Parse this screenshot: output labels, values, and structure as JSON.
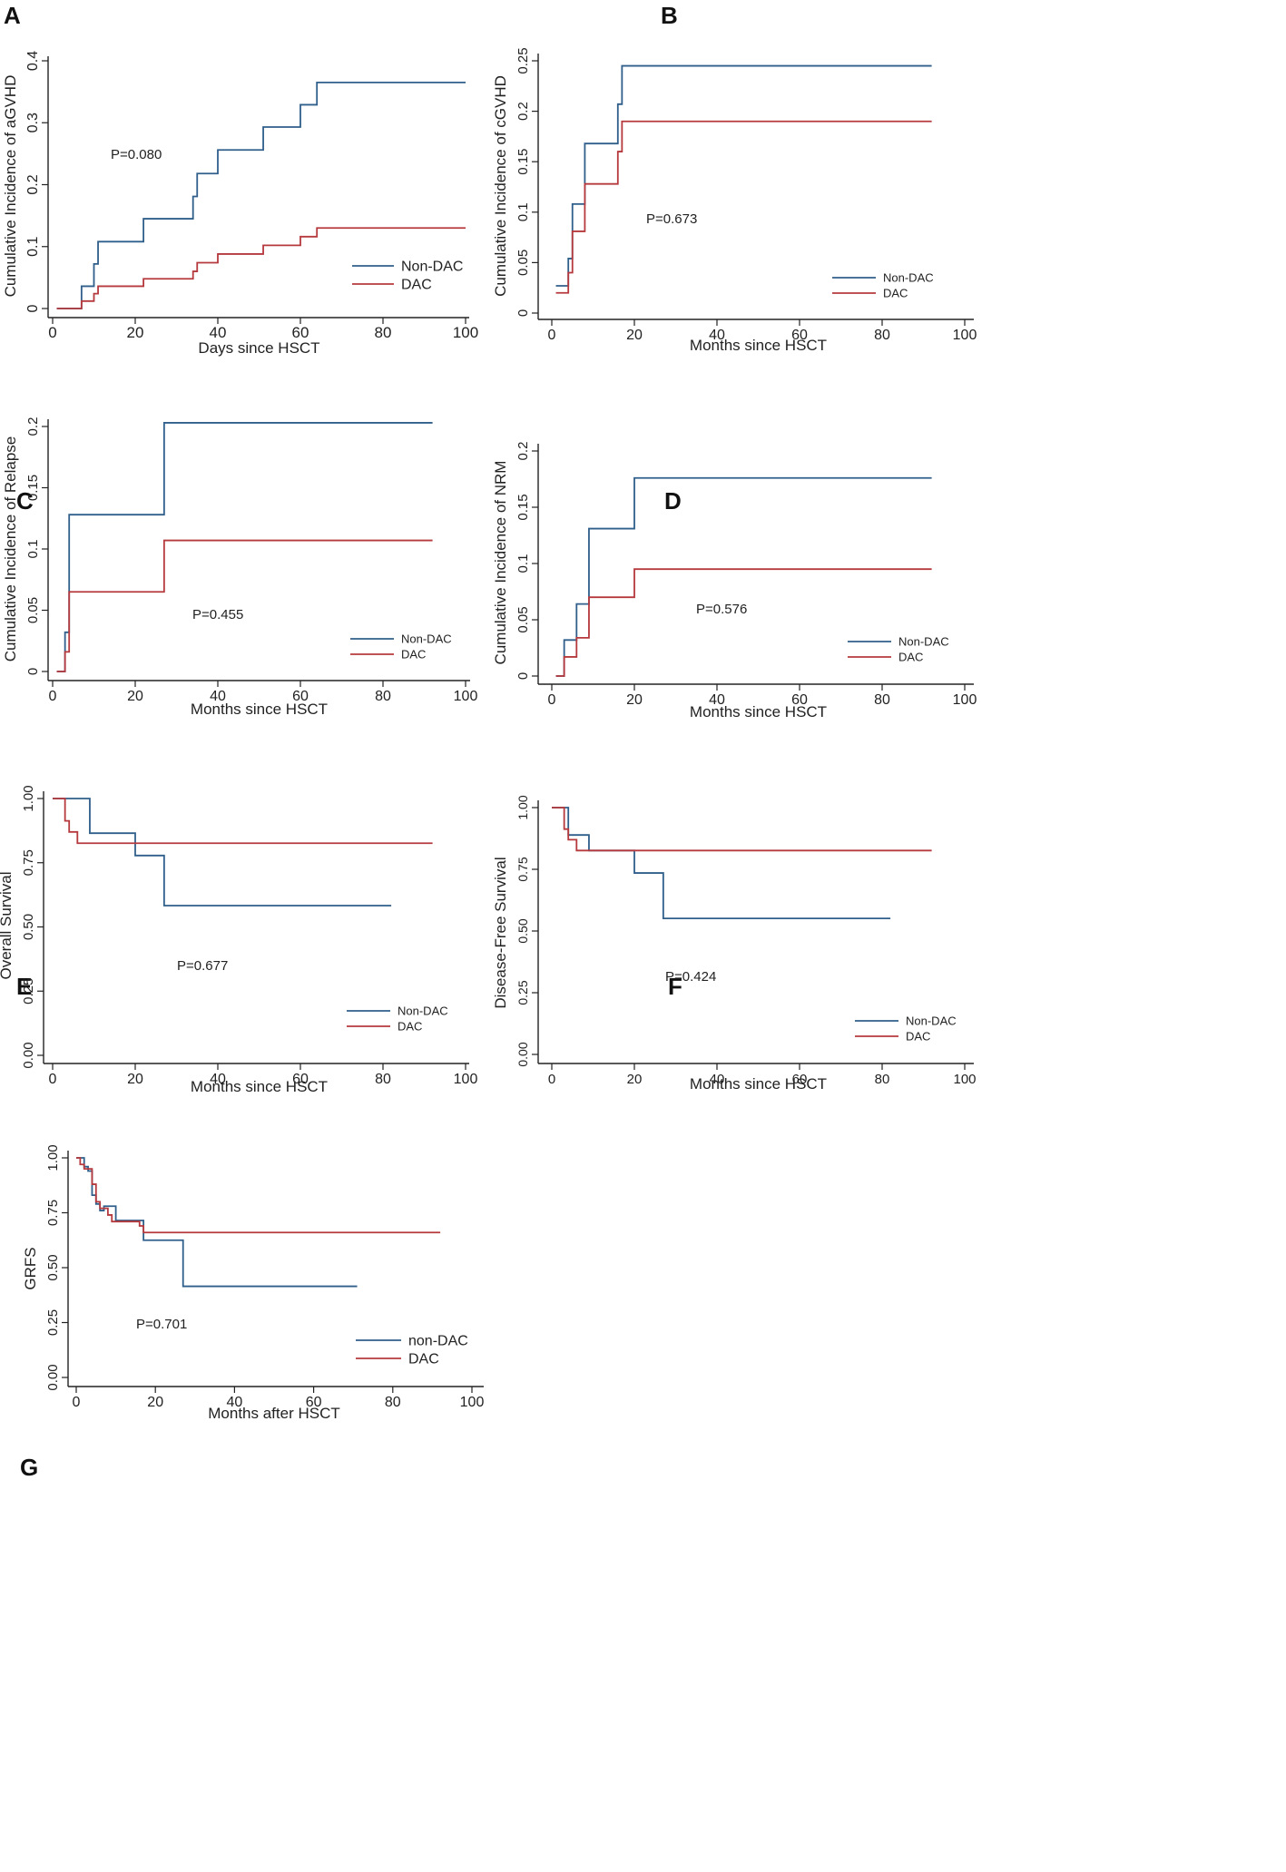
{
  "colors": {
    "non_dac": "#2f5f8a",
    "dac": "#b5393d",
    "axis": "#222222"
  },
  "chart_data": [
    {
      "panel": "A",
      "type": "line",
      "step": true,
      "xlabel": "Days since HSCT",
      "ylabel": "Cumulative Incidence of aGVHD",
      "xlim": [
        0,
        100
      ],
      "ylim": [
        0,
        0.4
      ],
      "xticks": [
        0,
        20,
        40,
        60,
        80,
        100
      ],
      "xtick_labels": [
        "0",
        "20",
        "40",
        "60",
        "80",
        "100"
      ],
      "yticks": [
        0,
        0.1,
        0.2,
        0.3,
        0.4
      ],
      "ytick_labels": [
        "0",
        "0.1",
        "0.2",
        "0.3",
        "0.4"
      ],
      "p_value": "P=0.080",
      "series": [
        {
          "name": "Non-DAC",
          "x": [
            1,
            7,
            10,
            11,
            22,
            34,
            35,
            40,
            51,
            60,
            64,
            100
          ],
          "y": [
            0,
            0.036,
            0.072,
            0.108,
            0.145,
            0.181,
            0.218,
            0.256,
            0.293,
            0.329,
            0.365,
            0.365
          ]
        },
        {
          "name": "DAC",
          "x": [
            1,
            7,
            10,
            11,
            22,
            34,
            35,
            40,
            51,
            60,
            64,
            100
          ],
          "y": [
            0,
            0.012,
            0.024,
            0.036,
            0.048,
            0.06,
            0.074,
            0.088,
            0.102,
            0.116,
            0.13,
            0.13
          ]
        }
      ]
    },
    {
      "panel": "B",
      "type": "line",
      "step": true,
      "xlabel": "Months since HSCT",
      "ylabel": "Cumulative Incidence of cGVHD",
      "xlim": [
        0,
        100
      ],
      "ylim": [
        0,
        0.25
      ],
      "xticks": [
        0,
        20,
        40,
        60,
        80,
        100
      ],
      "xtick_labels": [
        "0",
        "20",
        "40",
        "60",
        "80",
        "100"
      ],
      "yticks": [
        0,
        0.05,
        0.1,
        0.15,
        0.2,
        0.25
      ],
      "ytick_labels": [
        "0",
        "0.05",
        "0.1",
        "0.15",
        "0.2",
        "0.25"
      ],
      "p_value": "P=0.673",
      "series": [
        {
          "name": "Non-DAC",
          "x": [
            1,
            4,
            5,
            8,
            16,
            17,
            92
          ],
          "y": [
            0.027,
            0.054,
            0.108,
            0.168,
            0.207,
            0.245,
            0.245
          ]
        },
        {
          "name": "DAC",
          "x": [
            1,
            4,
            5,
            8,
            16,
            17,
            92
          ],
          "y": [
            0.02,
            0.04,
            0.081,
            0.128,
            0.16,
            0.19,
            0.19
          ]
        }
      ]
    },
    {
      "panel": "C",
      "type": "line",
      "step": true,
      "xlabel": "Months since HSCT",
      "ylabel": "Cumulative Incidence of Relapse",
      "xlim": [
        0,
        100
      ],
      "ylim": [
        0,
        0.2
      ],
      "xticks": [
        0,
        20,
        40,
        60,
        80,
        100
      ],
      "xtick_labels": [
        "0",
        "20",
        "40",
        "60",
        "80",
        "100"
      ],
      "yticks": [
        0,
        0.05,
        0.1,
        0.15,
        0.2
      ],
      "ytick_labels": [
        "0",
        "0.05",
        "0.1",
        "0.15",
        "0.2"
      ],
      "p_value": "P=0.455",
      "series": [
        {
          "name": "Non-DAC",
          "x": [
            1,
            3,
            4,
            27,
            92
          ],
          "y": [
            0,
            0.032,
            0.128,
            0.203,
            0.203
          ]
        },
        {
          "name": "DAC",
          "x": [
            1,
            3,
            4,
            27,
            92
          ],
          "y": [
            0,
            0.016,
            0.065,
            0.107,
            0.107
          ]
        }
      ]
    },
    {
      "panel": "D",
      "type": "line",
      "step": true,
      "xlabel": "Months since HSCT",
      "ylabel": "Cumulative Incidence of NRM",
      "xlim": [
        0,
        100
      ],
      "ylim": [
        0,
        0.2
      ],
      "xticks": [
        0,
        20,
        40,
        60,
        80,
        100
      ],
      "xtick_labels": [
        "0",
        "20",
        "40",
        "60",
        "80",
        "100"
      ],
      "yticks": [
        0,
        0.05,
        0.1,
        0.15,
        0.2
      ],
      "ytick_labels": [
        "0",
        "0.05",
        "0.1",
        "0.15",
        "0.2"
      ],
      "p_value": "P=0.576",
      "series": [
        {
          "name": "Non-DAC",
          "x": [
            1,
            3,
            6,
            9,
            20,
            92
          ],
          "y": [
            0,
            0.032,
            0.064,
            0.131,
            0.176,
            0.176
          ]
        },
        {
          "name": "DAC",
          "x": [
            1,
            3,
            6,
            9,
            20,
            92
          ],
          "y": [
            0,
            0.017,
            0.034,
            0.07,
            0.095,
            0.095
          ]
        }
      ]
    },
    {
      "panel": "E",
      "type": "line",
      "step": true,
      "xlabel": "Months since HSCT",
      "ylabel": "Overall Survival",
      "xlim": [
        0,
        100
      ],
      "ylim": [
        0,
        1
      ],
      "xticks": [
        0,
        20,
        40,
        60,
        80,
        100
      ],
      "xtick_labels": [
        "0",
        "20",
        "40",
        "60",
        "80",
        "100"
      ],
      "yticks": [
        0,
        0.25,
        0.5,
        0.75,
        1
      ],
      "ytick_labels": [
        "0.00",
        "0.25",
        "0.50",
        "0.75",
        "1.00"
      ],
      "p_value": "P=0.677",
      "series": [
        {
          "name": "Non-DAC",
          "x": [
            0,
            9,
            20,
            27,
            82
          ],
          "y": [
            1,
            0.865,
            0.778,
            0.583,
            0.583
          ]
        },
        {
          "name": "DAC",
          "x": [
            0,
            3,
            4,
            6,
            92
          ],
          "y": [
            1,
            0.913,
            0.87,
            0.826,
            0.826
          ]
        }
      ]
    },
    {
      "panel": "F",
      "type": "line",
      "step": true,
      "xlabel": "Months since HSCT",
      "ylabel": "Disease-Free Survival",
      "xlim": [
        0,
        100
      ],
      "ylim": [
        0,
        1
      ],
      "xticks": [
        0,
        20,
        40,
        60,
        80,
        100
      ],
      "xtick_labels": [
        "0",
        "20",
        "40",
        "60",
        "80",
        "100"
      ],
      "yticks": [
        0,
        0.25,
        0.5,
        0.75,
        1
      ],
      "ytick_labels": [
        "0.00",
        "0.25",
        "0.50",
        "0.75",
        "1.00"
      ],
      "p_value": "P=0.424",
      "series": [
        {
          "name": "Non-DAC",
          "x": [
            0,
            4,
            9,
            20,
            27,
            82
          ],
          "y": [
            1,
            0.889,
            0.826,
            0.735,
            0.551,
            0.551
          ]
        },
        {
          "name": "DAC",
          "x": [
            0,
            3,
            4,
            6,
            92
          ],
          "y": [
            1,
            0.913,
            0.87,
            0.826,
            0.826
          ]
        }
      ]
    },
    {
      "panel": "G",
      "type": "line",
      "step": true,
      "xlabel": "Months after HSCT",
      "ylabel": "GRFS",
      "xlim": [
        0,
        100
      ],
      "ylim": [
        0,
        1
      ],
      "xticks": [
        0,
        20,
        40,
        60,
        80,
        100
      ],
      "xtick_labels": [
        "0",
        "20",
        "40",
        "60",
        "80",
        "100"
      ],
      "yticks": [
        0,
        0.25,
        0.5,
        0.75,
        1
      ],
      "ytick_labels": [
        "0.00",
        "0.25",
        "0.50",
        "0.75",
        "1.00"
      ],
      "p_value": "P=0.701",
      "series": [
        {
          "name": "non-DAC",
          "x": [
            0,
            2,
            3,
            4,
            5,
            6,
            7,
            10,
            17,
            27,
            71
          ],
          "y": [
            1,
            0.96,
            0.94,
            0.83,
            0.79,
            0.76,
            0.78,
            0.715,
            0.625,
            0.415,
            0.415
          ]
        },
        {
          "name": "DAC",
          "x": [
            0,
            1,
            2,
            4,
            5,
            6,
            8,
            9,
            16,
            17,
            92
          ],
          "y": [
            1,
            0.97,
            0.95,
            0.88,
            0.8,
            0.77,
            0.74,
            0.71,
            0.69,
            0.66,
            0.66
          ]
        }
      ]
    }
  ]
}
